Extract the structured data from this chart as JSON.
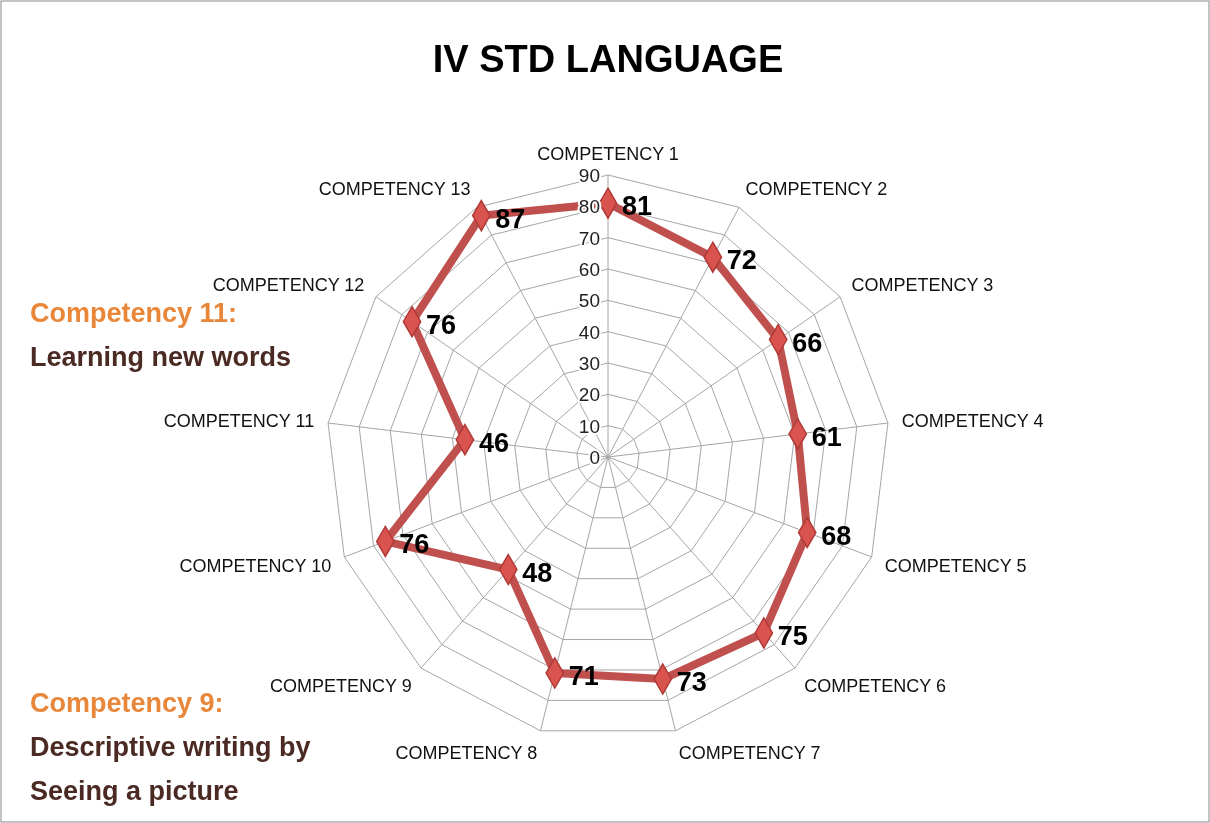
{
  "chart_data": {
    "type": "radar",
    "title": "IV STD LANGUAGE",
    "categories": [
      "COMPETENCY 1",
      "COMPETENCY 2",
      "COMPETENCY 3",
      "COMPETENCY 4",
      "COMPETENCY 5",
      "COMPETENCY 6",
      "COMPETENCY 7",
      "COMPETENCY 8",
      "COMPETENCY 9",
      "COMPETENCY 10",
      "COMPETENCY 11",
      "COMPETENCY 12",
      "COMPETENCY 13"
    ],
    "series": [
      {
        "color": "#c0504d",
        "values": [
          81,
          72,
          66,
          61,
          68,
          75,
          73,
          71,
          48,
          76,
          46,
          76,
          87
        ]
      }
    ],
    "ylim": [
      0,
      90
    ],
    "yticks": [
      0,
      10,
      20,
      30,
      40,
      50,
      60,
      70,
      80,
      90
    ],
    "grid": true,
    "data_labels": true,
    "marker": "diamond",
    "line_style": "solid",
    "annotations": [
      "Competency 11: Learning new words",
      "Competency 9: Descriptive writing by Seeing a picture"
    ]
  }
}
